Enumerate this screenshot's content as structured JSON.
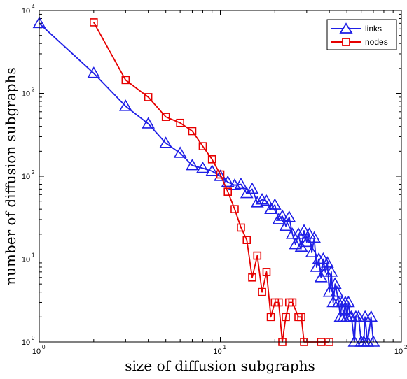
{
  "chart_data": {
    "type": "scatter",
    "xlabel": "size of diffusion subgraphs",
    "ylabel": "number of diffusion subgraphs",
    "xscale": "log",
    "yscale": "log",
    "xlim": [
      1,
      100
    ],
    "ylim": [
      1,
      10000
    ],
    "x_ticks": [
      {
        "base": "10",
        "exp": "0"
      },
      {
        "base": "10",
        "exp": "1"
      },
      {
        "base": "10",
        "exp": "2"
      }
    ],
    "y_ticks": [
      {
        "base": "10",
        "exp": "0"
      },
      {
        "base": "10",
        "exp": "1"
      },
      {
        "base": "10",
        "exp": "2"
      },
      {
        "base": "10",
        "exp": "3"
      },
      {
        "base": "10",
        "exp": "4"
      }
    ],
    "grid": false,
    "legend_position": "top-right",
    "series": [
      {
        "name": "links",
        "color": "#1f1fe6",
        "marker": "triangle",
        "points": [
          [
            1,
            7000
          ],
          [
            2,
            1750
          ],
          [
            3,
            700
          ],
          [
            4,
            430
          ],
          [
            5,
            250
          ],
          [
            6,
            190
          ],
          [
            7,
            135
          ],
          [
            8,
            125
          ],
          [
            9,
            115
          ],
          [
            10,
            100
          ],
          [
            11,
            85
          ],
          [
            12,
            78
          ],
          [
            13,
            80
          ],
          [
            14,
            62
          ],
          [
            15,
            70
          ],
          [
            16,
            48
          ],
          [
            17,
            52
          ],
          [
            18,
            50
          ],
          [
            19,
            40
          ],
          [
            20,
            45
          ],
          [
            21,
            30
          ],
          [
            22,
            33
          ],
          [
            23,
            25
          ],
          [
            24,
            32
          ],
          [
            25,
            20
          ],
          [
            26,
            15
          ],
          [
            27,
            20
          ],
          [
            28,
            14
          ],
          [
            29,
            22
          ],
          [
            30,
            16
          ],
          [
            31,
            20
          ],
          [
            32,
            12
          ],
          [
            33,
            18
          ],
          [
            34,
            8
          ],
          [
            35,
            10
          ],
          [
            36,
            6
          ],
          [
            37,
            10
          ],
          [
            38,
            7
          ],
          [
            39,
            9
          ],
          [
            40,
            4
          ],
          [
            41,
            7
          ],
          [
            42,
            3
          ],
          [
            43,
            5
          ],
          [
            44,
            4
          ],
          [
            45,
            3
          ],
          [
            46,
            2
          ],
          [
            47,
            3
          ],
          [
            48,
            2
          ],
          [
            49,
            3
          ],
          [
            50,
            2
          ],
          [
            51,
            3
          ],
          [
            52,
            2
          ],
          [
            53,
            2
          ],
          [
            55,
            1
          ],
          [
            56,
            2
          ],
          [
            58,
            2
          ],
          [
            60,
            1
          ],
          [
            62,
            1
          ],
          [
            63,
            2
          ],
          [
            65,
            1
          ],
          [
            68,
            2
          ],
          [
            70,
            1
          ]
        ]
      },
      {
        "name": "nodes",
        "color": "#e60000",
        "marker": "square",
        "points": [
          [
            2,
            7200
          ],
          [
            3,
            1450
          ],
          [
            4,
            900
          ],
          [
            5,
            520
          ],
          [
            6,
            440
          ],
          [
            7,
            350
          ],
          [
            8,
            230
          ],
          [
            9,
            160
          ],
          [
            10,
            105
          ],
          [
            11,
            65
          ],
          [
            12,
            40
          ],
          [
            13,
            24
          ],
          [
            14,
            17
          ],
          [
            15,
            6
          ],
          [
            16,
            11
          ],
          [
            17,
            4
          ],
          [
            18,
            7
          ],
          [
            19,
            2
          ],
          [
            20,
            3
          ],
          [
            21,
            3
          ],
          [
            22,
            1
          ],
          [
            23,
            2
          ],
          [
            24,
            3
          ],
          [
            25,
            3
          ],
          [
            27,
            2
          ],
          [
            28,
            2
          ],
          [
            29,
            1
          ],
          [
            36,
            1
          ],
          [
            40,
            1
          ]
        ]
      }
    ]
  }
}
